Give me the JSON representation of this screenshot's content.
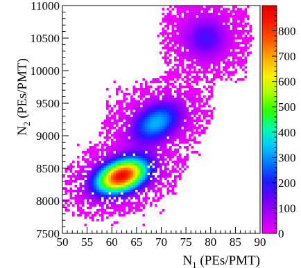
{
  "chart_data": {
    "type": "heatmap",
    "title": "",
    "xlabel": {
      "main": "N",
      "sub": "1",
      "rest": " (PEs/PMT)"
    },
    "ylabel": {
      "main": "N",
      "sub": "2",
      "rest": " (PEs/PMT)"
    },
    "xlim": [
      50,
      90
    ],
    "ylim": [
      7500,
      11000
    ],
    "xticks": [
      50,
      55,
      60,
      65,
      70,
      75,
      80,
      85,
      90
    ],
    "yticks": [
      7500,
      8000,
      8500,
      9000,
      9500,
      10000,
      10500,
      11000
    ],
    "zlim": [
      0,
      900
    ],
    "zticks": [
      0,
      100,
      200,
      300,
      400,
      500,
      600,
      700,
      800
    ],
    "grid": false,
    "colorbar": "right",
    "palette": [
      "#f200ff",
      "#b300ff",
      "#6a00ff",
      "#1b1bff",
      "#0077ff",
      "#00c8ff",
      "#00ffa8",
      "#2cff00",
      "#a8ff00",
      "#fff000",
      "#ffae00",
      "#ff5a00",
      "#ff1a00",
      "#e00000"
    ],
    "clusters": [
      {
        "center": [
          62,
          8380
        ],
        "sigma": [
          3.3,
          170
        ],
        "peak": 880,
        "orientation": "tilted",
        "x_extent": [
          53,
          73
        ],
        "y_extent": [
          7550,
          8950
        ]
      },
      {
        "center": [
          69,
          9200
        ],
        "sigma": [
          3.2,
          200
        ],
        "peak": 330,
        "orientation": "tilted",
        "x_extent": [
          59,
          78
        ],
        "y_extent": [
          8500,
          9900
        ]
      },
      {
        "center": [
          79,
          10500
        ],
        "sigma": [
          3.0,
          220
        ],
        "peak": 170,
        "orientation": "round",
        "x_extent": [
          70,
          88
        ],
        "y_extent": [
          9800,
          11000
        ]
      }
    ]
  }
}
